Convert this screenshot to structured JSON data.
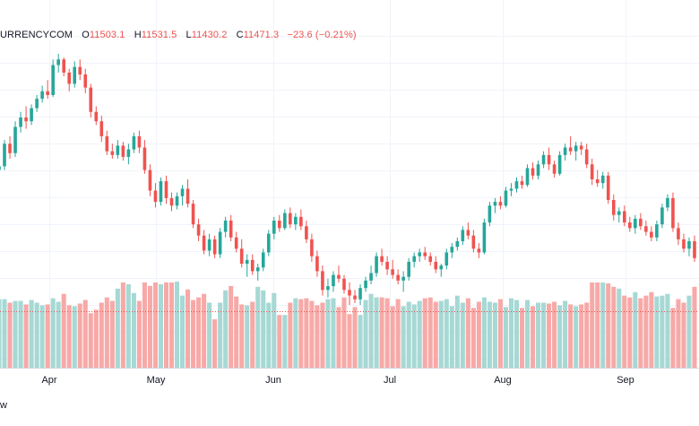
{
  "legend": {
    "symbol": "URRENCYCOM",
    "open_label": "O",
    "open": "11503.1",
    "high_label": "H",
    "high": "11531.5",
    "low_label": "L",
    "low": "11430.2",
    "close_label": "C",
    "close": "11471.3",
    "change": "−23.6 (−0.21%)"
  },
  "footer": {
    "text": "w"
  },
  "colors": {
    "up": "#26a69a",
    "down": "#ef5350",
    "up_volume": "#a6d8d4",
    "down_volume": "#f7a9a7",
    "grid": "#f0f3fa",
    "last_price_line": "#ef5350"
  },
  "chart_data": {
    "type": "candlestick",
    "x_tick_labels": [
      "Apr",
      "May",
      "Jun",
      "Jul",
      "Aug",
      "Sep"
    ],
    "grid": true,
    "volume_pane": true,
    "candles_ohlc": [
      [
        12.0,
        12.6,
        11.8,
        12.2
      ],
      [
        12.2,
        13.6,
        12.0,
        13.4
      ],
      [
        13.4,
        13.8,
        12.6,
        12.9
      ],
      [
        12.9,
        14.6,
        12.7,
        14.3
      ],
      [
        14.3,
        15.1,
        14.0,
        14.8
      ],
      [
        14.8,
        15.4,
        14.2,
        14.6
      ],
      [
        14.6,
        15.5,
        14.4,
        15.3
      ],
      [
        15.3,
        16.0,
        15.1,
        15.8
      ],
      [
        15.8,
        16.5,
        15.6,
        16.2
      ],
      [
        16.2,
        16.8,
        15.8,
        16.0
      ],
      [
        16.0,
        17.9,
        15.9,
        17.6
      ],
      [
        17.6,
        18.2,
        17.2,
        17.9
      ],
      [
        17.9,
        18.0,
        17.0,
        17.2
      ],
      [
        17.2,
        17.4,
        16.2,
        16.6
      ],
      [
        16.6,
        17.8,
        16.4,
        17.5
      ],
      [
        17.5,
        17.9,
        16.8,
        17.1
      ],
      [
        17.1,
        17.4,
        16.1,
        16.4
      ],
      [
        16.4,
        16.6,
        14.8,
        15.1
      ],
      [
        15.1,
        15.4,
        14.4,
        14.6
      ],
      [
        14.6,
        14.9,
        13.5,
        13.8
      ],
      [
        13.8,
        14.1,
        12.8,
        13.0
      ],
      [
        13.0,
        13.4,
        12.6,
        12.8
      ],
      [
        12.8,
        13.6,
        12.6,
        13.3
      ],
      [
        13.3,
        13.5,
        12.5,
        12.7
      ],
      [
        12.7,
        13.4,
        12.3,
        13.1
      ],
      [
        13.1,
        14.0,
        12.9,
        13.8
      ],
      [
        13.8,
        14.1,
        12.9,
        13.2
      ],
      [
        13.2,
        13.6,
        11.8,
        12.0
      ],
      [
        12.0,
        12.3,
        10.6,
        10.9
      ],
      [
        10.9,
        11.3,
        10.0,
        10.3
      ],
      [
        10.3,
        11.6,
        10.1,
        11.4
      ],
      [
        11.4,
        11.7,
        10.2,
        10.5
      ],
      [
        10.5,
        10.8,
        9.8,
        10.1
      ],
      [
        10.1,
        10.8,
        9.9,
        10.6
      ],
      [
        10.6,
        11.2,
        10.1,
        11.0
      ],
      [
        11.0,
        11.5,
        10.0,
        10.2
      ],
      [
        10.2,
        10.4,
        8.9,
        9.1
      ],
      [
        9.1,
        9.4,
        8.2,
        8.5
      ],
      [
        8.5,
        8.8,
        7.5,
        7.7
      ],
      [
        7.7,
        8.6,
        7.4,
        8.3
      ],
      [
        8.3,
        8.5,
        7.3,
        7.5
      ],
      [
        7.5,
        8.9,
        7.3,
        8.7
      ],
      [
        8.7,
        9.5,
        8.4,
        9.3
      ],
      [
        9.3,
        9.6,
        8.2,
        8.4
      ],
      [
        8.4,
        8.7,
        7.6,
        7.8
      ],
      [
        7.8,
        8.3,
        6.8,
        7.0
      ],
      [
        7.0,
        7.5,
        6.3,
        7.2
      ],
      [
        7.2,
        7.5,
        6.4,
        6.6
      ],
      [
        6.6,
        7.0,
        6.1,
        6.8
      ],
      [
        6.8,
        7.8,
        6.6,
        7.6
      ],
      [
        7.6,
        8.8,
        7.4,
        8.6
      ],
      [
        8.6,
        9.5,
        8.3,
        9.3
      ],
      [
        9.3,
        9.6,
        8.7,
        8.9
      ],
      [
        8.9,
        9.9,
        8.8,
        9.7
      ],
      [
        9.7,
        10.0,
        8.9,
        9.1
      ],
      [
        9.1,
        9.7,
        8.8,
        9.5
      ],
      [
        9.5,
        9.9,
        8.8,
        9.0
      ],
      [
        9.0,
        9.3,
        8.1,
        8.3
      ],
      [
        8.3,
        8.6,
        7.1,
        7.4
      ],
      [
        7.4,
        7.7,
        6.3,
        6.6
      ],
      [
        6.6,
        6.9,
        5.3,
        5.6
      ],
      [
        5.6,
        6.2,
        5.2,
        5.8
      ],
      [
        5.8,
        6.6,
        5.5,
        6.4
      ],
      [
        6.4,
        6.9,
        6.0,
        6.2
      ],
      [
        6.2,
        6.4,
        5.4,
        5.6
      ],
      [
        5.6,
        6.0,
        4.8,
        5.3
      ],
      [
        5.3,
        5.6,
        4.9,
        5.1
      ],
      [
        5.1,
        5.9,
        4.8,
        5.7
      ],
      [
        5.7,
        6.3,
        5.5,
        6.1
      ],
      [
        6.1,
        6.9,
        5.9,
        6.5
      ],
      [
        6.5,
        7.6,
        6.3,
        7.4
      ],
      [
        7.4,
        7.8,
        6.9,
        7.1
      ],
      [
        7.1,
        7.4,
        6.4,
        6.7
      ],
      [
        6.7,
        7.2,
        6.2,
        6.4
      ],
      [
        6.4,
        6.7,
        5.9,
        6.1
      ],
      [
        6.1,
        6.6,
        5.5,
        6.3
      ],
      [
        6.3,
        7.3,
        6.1,
        7.1
      ],
      [
        7.1,
        7.6,
        6.8,
        7.4
      ],
      [
        7.4,
        7.8,
        7.1,
        7.6
      ],
      [
        7.6,
        7.9,
        7.2,
        7.4
      ],
      [
        7.4,
        7.6,
        6.9,
        7.1
      ],
      [
        7.1,
        7.4,
        6.5,
        6.7
      ],
      [
        6.7,
        7.0,
        6.3,
        6.9
      ],
      [
        6.9,
        7.8,
        6.7,
        7.6
      ],
      [
        7.6,
        8.1,
        7.3,
        7.9
      ],
      [
        7.9,
        8.4,
        7.7,
        8.2
      ],
      [
        8.2,
        9.0,
        8.0,
        8.8
      ],
      [
        8.8,
        9.2,
        8.3,
        8.5
      ],
      [
        8.5,
        8.8,
        7.6,
        7.8
      ],
      [
        7.8,
        8.1,
        7.3,
        7.6
      ],
      [
        7.6,
        9.4,
        7.5,
        9.2
      ],
      [
        9.2,
        10.3,
        9.0,
        10.1
      ],
      [
        10.1,
        10.5,
        9.7,
        10.3
      ],
      [
        10.3,
        10.6,
        9.9,
        10.1
      ],
      [
        10.1,
        11.1,
        10.0,
        10.9
      ],
      [
        10.9,
        11.3,
        10.6,
        11.0
      ],
      [
        11.0,
        11.6,
        10.8,
        11.4
      ],
      [
        11.4,
        11.7,
        11.0,
        11.2
      ],
      [
        11.2,
        12.3,
        11.1,
        12.1
      ],
      [
        12.1,
        12.4,
        11.5,
        11.7
      ],
      [
        11.7,
        12.5,
        11.5,
        12.3
      ],
      [
        12.3,
        13.0,
        12.1,
        12.8
      ],
      [
        12.8,
        13.2,
        12.0,
        12.3
      ],
      [
        12.3,
        12.5,
        11.6,
        11.8
      ],
      [
        11.8,
        13.0,
        11.7,
        12.8
      ],
      [
        12.8,
        13.4,
        12.5,
        13.2
      ],
      [
        13.2,
        13.8,
        12.8,
        13.0
      ],
      [
        13.0,
        13.5,
        12.5,
        13.3
      ],
      [
        13.3,
        13.5,
        12.8,
        13.1
      ],
      [
        13.1,
        13.4,
        12.1,
        12.3
      ],
      [
        12.3,
        12.6,
        11.2,
        11.5
      ],
      [
        11.5,
        12.0,
        11.1,
        11.3
      ],
      [
        11.3,
        11.9,
        11.0,
        11.7
      ],
      [
        11.7,
        11.9,
        10.2,
        10.4
      ],
      [
        10.4,
        10.7,
        9.3,
        9.6
      ],
      [
        9.6,
        10.0,
        9.2,
        9.8
      ],
      [
        9.8,
        10.1,
        9.0,
        9.2
      ],
      [
        9.2,
        9.5,
        8.7,
        8.9
      ],
      [
        8.9,
        9.6,
        8.6,
        9.4
      ],
      [
        9.4,
        9.7,
        8.8,
        9.0
      ],
      [
        9.0,
        9.3,
        8.5,
        8.7
      ],
      [
        8.7,
        9.0,
        8.2,
        8.4
      ],
      [
        8.4,
        9.3,
        8.2,
        9.1
      ],
      [
        9.1,
        10.2,
        8.9,
        10.0
      ],
      [
        10.0,
        10.7,
        9.8,
        10.5
      ],
      [
        10.5,
        10.8,
        8.7,
        8.9
      ],
      [
        8.9,
        9.2,
        8.0,
        8.3
      ],
      [
        8.3,
        8.6,
        7.6,
        7.8
      ],
      [
        7.8,
        8.4,
        7.4,
        8.2
      ],
      [
        8.2,
        8.5,
        7.1,
        7.3
      ]
    ],
    "volumes": [
      0.78,
      0.78,
      0.74,
      0.76,
      0.76,
      0.72,
      0.77,
      0.74,
      0.71,
      0.72,
      0.79,
      0.75,
      0.84,
      0.71,
      0.7,
      0.73,
      0.77,
      0.62,
      0.66,
      0.74,
      0.8,
      0.76,
      0.9,
      0.97,
      0.95,
      0.85,
      0.76,
      0.97,
      0.93,
      0.97,
      0.95,
      0.97,
      0.97,
      0.98,
      0.82,
      0.89,
      0.77,
      0.8,
      0.84,
      0.74,
      0.55,
      0.74,
      0.88,
      0.93,
      0.81,
      0.72,
      0.71,
      0.75,
      0.92,
      0.88,
      0.74,
      0.85,
      0.6,
      0.6,
      0.74,
      0.79,
      0.78,
      0.79,
      0.76,
      0.71,
      0.74,
      0.78,
      0.79,
      0.69,
      0.8,
      0.61,
      0.69,
      0.6,
      0.77,
      0.84,
      0.8,
      0.8,
      0.79,
      0.7,
      0.78,
      0.7,
      0.75,
      0.72,
      0.76,
      0.79,
      0.8,
      0.75,
      0.76,
      0.78,
      0.7,
      0.82,
      0.74,
      0.79,
      0.68,
      0.75,
      0.8,
      0.75,
      0.74,
      0.78,
      0.69,
      0.79,
      0.77,
      0.68,
      0.77,
      0.7,
      0.74,
      0.74,
      0.73,
      0.75,
      0.71,
      0.76,
      0.72,
      0.7,
      0.72,
      0.74,
      0.97,
      0.97,
      0.97,
      0.96,
      0.92,
      0.9,
      0.82,
      0.8,
      0.86,
      0.79,
      0.82,
      0.86,
      0.81,
      0.82,
      0.84,
      0.68,
      0.78,
      0.74,
      0.82,
      0.92
    ]
  }
}
